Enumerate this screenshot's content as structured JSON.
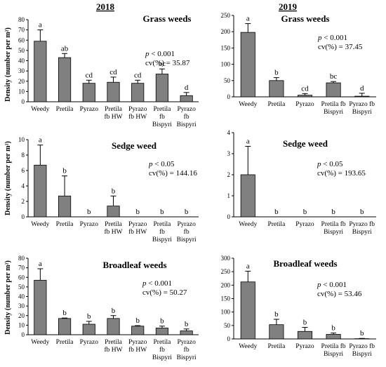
{
  "years": [
    "2018",
    "2019"
  ],
  "ylabel": "Density (number per m²)",
  "chart_data": [
    {
      "type": "bar",
      "year": "2018",
      "title": "Grass weeds",
      "categories": [
        [
          "Weedy"
        ],
        [
          "Pretila"
        ],
        [
          "Pyrazo"
        ],
        [
          "Pretila",
          "fb HW"
        ],
        [
          "Pyrazo",
          "fb HW"
        ],
        [
          "Pretila",
          "fb",
          "Bispyri"
        ],
        [
          "Pyrazo",
          "fb",
          "Bispyri"
        ]
      ],
      "values": [
        59,
        43,
        18,
        19,
        18,
        27,
        6
      ],
      "errors": [
        11,
        4,
        3,
        5,
        3,
        5,
        3
      ],
      "letters": [
        "a",
        "ab",
        "cd",
        "cd",
        "cd",
        "bc",
        "d"
      ],
      "ylim": [
        0,
        80
      ],
      "yticks": [
        0,
        10,
        20,
        30,
        40,
        50,
        60,
        70,
        80
      ],
      "stats": [
        "p < 0.001",
        "cv(%) = 35.87"
      ]
    },
    {
      "type": "bar",
      "year": "2019",
      "title": "Grass weeds",
      "categories": [
        [
          "Weedy"
        ],
        [
          "Pretila"
        ],
        [
          "Pyrazo"
        ],
        [
          "Pretila fb",
          "Bispyri"
        ],
        [
          "Pyrazo fb",
          "Bispyri"
        ]
      ],
      "values": [
        198,
        50,
        5,
        43,
        2
      ],
      "errors": [
        27,
        9,
        5,
        4,
        9
      ],
      "letters": [
        "a",
        "b",
        "cd",
        "bc",
        "d"
      ],
      "ylim": [
        0,
        250
      ],
      "yticks": [
        0,
        50,
        100,
        150,
        200,
        250
      ],
      "stats": [
        "p < 0.001",
        "cv(%) = 37.45"
      ]
    },
    {
      "type": "bar",
      "year": "2018",
      "title": "Sedge weed",
      "categories": [
        [
          "Weedy"
        ],
        [
          "Pretila"
        ],
        [
          "Pyrazo"
        ],
        [
          "Pretila",
          "fb HW"
        ],
        [
          "Pyrazo",
          "fb HW"
        ],
        [
          "Pretila",
          "fb",
          "Bispyri"
        ],
        [
          "Pyrazo",
          "fb",
          "Bispyri"
        ]
      ],
      "values": [
        6.7,
        2.7,
        0,
        1.4,
        0,
        0,
        0
      ],
      "errors": [
        2.6,
        2.6,
        0,
        1.3,
        0,
        0,
        0
      ],
      "letters": [
        "a",
        "b",
        "b",
        "b",
        "b",
        "b",
        "b"
      ],
      "ylim": [
        0,
        10
      ],
      "yticks": [
        0,
        2,
        4,
        6,
        8,
        10
      ],
      "stats": [
        "p < 0.05",
        "cv(%) = 144.16"
      ]
    },
    {
      "type": "bar",
      "year": "2019",
      "title": "Sedge weed",
      "categories": [
        [
          "Weedy"
        ],
        [
          "Pretila"
        ],
        [
          "Pyrazo"
        ],
        [
          "Pretila fb",
          "Bispyri"
        ],
        [
          "Pyrazo fb",
          "Bispyri"
        ]
      ],
      "values": [
        2.0,
        0,
        0,
        0,
        0
      ],
      "errors": [
        1.35,
        0,
        0,
        0,
        0
      ],
      "letters": [
        "a",
        "b",
        "b",
        "b",
        "b"
      ],
      "ylim": [
        0,
        4
      ],
      "yticks": [
        0,
        1,
        2,
        3,
        4
      ],
      "stats": [
        "p < 0.05",
        "cv(%) = 193.65"
      ]
    },
    {
      "type": "bar",
      "year": "2018",
      "title": "Broadleaf weeds",
      "categories": [
        [
          "Weedy"
        ],
        [
          "Pretila"
        ],
        [
          "Pyrazo"
        ],
        [
          "Pretila",
          "fb HW"
        ],
        [
          "Pyrazo",
          "fb HW"
        ],
        [
          "Pretila",
          "fb",
          "Bispyri"
        ],
        [
          "Pyrazo",
          "fb",
          "Bispyri"
        ]
      ],
      "values": [
        57,
        17,
        11,
        17,
        9,
        7,
        4
      ],
      "errors": [
        12,
        0.5,
        3,
        3,
        0.5,
        2,
        2
      ],
      "letters": [
        "a",
        "b",
        "b",
        "b",
        "b",
        "b",
        "b"
      ],
      "ylim": [
        0,
        80
      ],
      "yticks": [
        0,
        10,
        20,
        30,
        40,
        50,
        60,
        70,
        80
      ],
      "stats": [
        "p < 0.001",
        "cv(%) = 50.27"
      ]
    },
    {
      "type": "bar",
      "year": "2019",
      "title": "Broadleaf weeds",
      "categories": [
        [
          "Weedy"
        ],
        [
          "Pretila"
        ],
        [
          "Pyrazo"
        ],
        [
          "Pretila fb",
          "Bispyri"
        ],
        [
          "Pyrazo fb",
          "Bispyri"
        ]
      ],
      "values": [
        212,
        53,
        28,
        17,
        1
      ],
      "errors": [
        40,
        20,
        15,
        5,
        1
      ],
      "letters": [
        "a",
        "b",
        "b",
        "b",
        "b"
      ],
      "ylim": [
        0,
        300
      ],
      "yticks": [
        0,
        50,
        100,
        150,
        200,
        250,
        300
      ],
      "stats": [
        "p < 0.001",
        "cv(%) = 53.46"
      ]
    }
  ]
}
